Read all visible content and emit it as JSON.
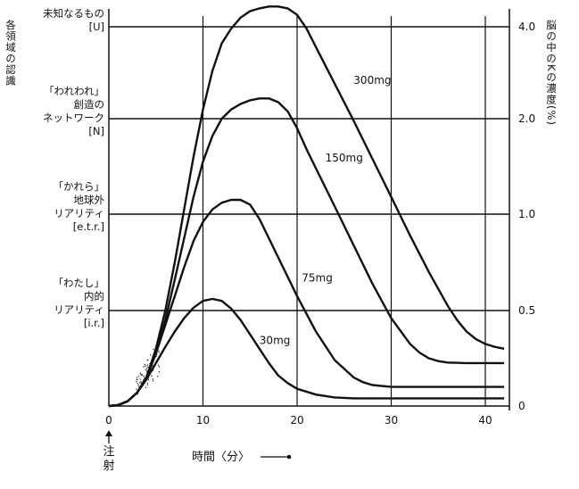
{
  "chart_data": {
    "type": "line",
    "left_axis_title": "各領域の認識",
    "right_axis_title": "脳の中のKの濃度(%)",
    "xlabel": "時間〈分〉",
    "injection_label": "注射",
    "x_ticks": [
      "0",
      "10",
      "20",
      "30",
      "40"
    ],
    "xlim": [
      0,
      42
    ],
    "right_ticks": [
      {
        "label": "4.0",
        "level": 4.0
      },
      {
        "label": "2.0",
        "level": 3.0
      },
      {
        "label": "1.0",
        "level": 2.0
      },
      {
        "label": "0.5",
        "level": 1.0
      },
      {
        "label": "0",
        "level": 0
      }
    ],
    "region_labels": [
      {
        "lines": [
          "未知なるもの",
          "[U]"
        ],
        "level": 4.0
      },
      {
        "lines": [
          "「われわれ」",
          "創造の",
          "ネットワーク",
          "[N]"
        ],
        "level": 3.0
      },
      {
        "lines": [
          "「かれら」",
          "地球外",
          "リアリティ",
          "[e.t.r.]"
        ],
        "level": 2.0
      },
      {
        "lines": [
          "「わたし」",
          "内的",
          "リアリティ",
          "[i.r.]"
        ],
        "level": 1.0
      }
    ],
    "series": [
      {
        "name": "300mg",
        "label_at": [
          26,
          3.38
        ],
        "points": [
          [
            0,
            0
          ],
          [
            1,
            0.01
          ],
          [
            2,
            0.05
          ],
          [
            3,
            0.14
          ],
          [
            4,
            0.3
          ],
          [
            5,
            0.6
          ],
          [
            6,
            1.0
          ],
          [
            7,
            1.5
          ],
          [
            8,
            2.05
          ],
          [
            9,
            2.6
          ],
          [
            10,
            3.1
          ],
          [
            11,
            3.52
          ],
          [
            12,
            3.82
          ],
          [
            13,
            3.98
          ],
          [
            14,
            4.1
          ],
          [
            15,
            4.17
          ],
          [
            16,
            4.2
          ],
          [
            17,
            4.22
          ],
          [
            18,
            4.22
          ],
          [
            19,
            4.2
          ],
          [
            20,
            4.13
          ],
          [
            21,
            3.98
          ],
          [
            22,
            3.78
          ],
          [
            24,
            3.38
          ],
          [
            26,
            2.98
          ],
          [
            28,
            2.58
          ],
          [
            30,
            2.18
          ],
          [
            32,
            1.78
          ],
          [
            34,
            1.4
          ],
          [
            36,
            1.05
          ],
          [
            37,
            0.9
          ],
          [
            38,
            0.78
          ],
          [
            39,
            0.7
          ],
          [
            40,
            0.65
          ],
          [
            41,
            0.62
          ],
          [
            42,
            0.6
          ]
        ]
      },
      {
        "name": "150mg",
        "label_at": [
          23,
          2.55
        ],
        "points": [
          [
            0,
            0
          ],
          [
            1,
            0.01
          ],
          [
            2,
            0.05
          ],
          [
            3,
            0.14
          ],
          [
            4,
            0.3
          ],
          [
            5,
            0.55
          ],
          [
            6,
            0.9
          ],
          [
            7,
            1.32
          ],
          [
            8,
            1.75
          ],
          [
            9,
            2.18
          ],
          [
            10,
            2.55
          ],
          [
            11,
            2.82
          ],
          [
            12,
            3.0
          ],
          [
            13,
            3.1
          ],
          [
            14,
            3.16
          ],
          [
            15,
            3.2
          ],
          [
            16,
            3.22
          ],
          [
            17,
            3.22
          ],
          [
            18,
            3.18
          ],
          [
            19,
            3.08
          ],
          [
            20,
            2.9
          ],
          [
            21,
            2.68
          ],
          [
            22,
            2.48
          ],
          [
            24,
            2.08
          ],
          [
            26,
            1.68
          ],
          [
            28,
            1.28
          ],
          [
            30,
            0.92
          ],
          [
            32,
            0.65
          ],
          [
            33,
            0.56
          ],
          [
            34,
            0.5
          ],
          [
            35,
            0.47
          ],
          [
            36,
            0.455
          ],
          [
            38,
            0.45
          ],
          [
            42,
            0.45
          ]
        ]
      },
      {
        "name": "75mg",
        "label_at": [
          20.5,
          1.3
        ],
        "points": [
          [
            0,
            0
          ],
          [
            1,
            0.01
          ],
          [
            2,
            0.05
          ],
          [
            3,
            0.14
          ],
          [
            4,
            0.3
          ],
          [
            5,
            0.55
          ],
          [
            6,
            0.85
          ],
          [
            7,
            1.15
          ],
          [
            8,
            1.45
          ],
          [
            9,
            1.72
          ],
          [
            10,
            1.92
          ],
          [
            11,
            2.05
          ],
          [
            12,
            2.12
          ],
          [
            13,
            2.15
          ],
          [
            14,
            2.15
          ],
          [
            15,
            2.1
          ],
          [
            16,
            1.95
          ],
          [
            17,
            1.75
          ],
          [
            18,
            1.55
          ],
          [
            20,
            1.15
          ],
          [
            22,
            0.78
          ],
          [
            24,
            0.48
          ],
          [
            26,
            0.3
          ],
          [
            27,
            0.25
          ],
          [
            28,
            0.22
          ],
          [
            30,
            0.2
          ],
          [
            42,
            0.2
          ]
        ]
      },
      {
        "name": "30mg",
        "label_at": [
          16,
          0.65
        ],
        "points": [
          [
            0,
            0
          ],
          [
            1,
            0.01
          ],
          [
            2,
            0.05
          ],
          [
            3,
            0.14
          ],
          [
            4,
            0.28
          ],
          [
            5,
            0.45
          ],
          [
            6,
            0.62
          ],
          [
            7,
            0.78
          ],
          [
            8,
            0.92
          ],
          [
            9,
            1.03
          ],
          [
            10,
            1.1
          ],
          [
            11,
            1.12
          ],
          [
            12,
            1.1
          ],
          [
            13,
            1.02
          ],
          [
            14,
            0.9
          ],
          [
            15,
            0.75
          ],
          [
            16,
            0.6
          ],
          [
            17,
            0.45
          ],
          [
            18,
            0.32
          ],
          [
            19,
            0.24
          ],
          [
            20,
            0.18
          ],
          [
            22,
            0.12
          ],
          [
            24,
            0.09
          ],
          [
            26,
            0.08
          ],
          [
            30,
            0.08
          ],
          [
            42,
            0.08
          ]
        ]
      }
    ]
  }
}
